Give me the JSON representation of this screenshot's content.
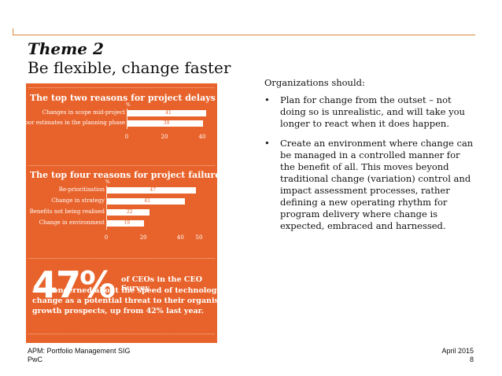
{
  "slide": {
    "title": "Theme 2",
    "subtitle": "Be flexible, change faster"
  },
  "infographic": {
    "chart1_heading": "The top two reasons for project delays were:",
    "chart2_heading": "The top four reasons for project failure include:",
    "stat_value": "47%",
    "stat_text_inline": "of CEOs in the CEO Survey",
    "stat_lines": [
      "are concerned about the speed of technological",
      "change as a potential threat to their organisation's",
      "growth prospects, up from 42% last year."
    ]
  },
  "chart_data": [
    {
      "type": "bar",
      "orientation": "horizontal",
      "title": "The top two reasons for project delays were:",
      "unit_label": "%",
      "categories": [
        "Changes in scope mid-project",
        "Poor estimates in the planning phase"
      ],
      "values": [
        41,
        39
      ],
      "ticks": [
        "0",
        "20",
        "40"
      ],
      "xlim": [
        0,
        40
      ]
    },
    {
      "type": "bar",
      "orientation": "horizontal",
      "title": "The top four reasons for project failure include:",
      "unit_label": "%",
      "categories": [
        "Re-prioritisation",
        "Change in strategy",
        "Benefits not being realised",
        "Change in environment"
      ],
      "values": [
        47,
        41,
        22,
        19
      ],
      "ticks": [
        "0",
        "20",
        "40",
        "50"
      ],
      "xlim": [
        0,
        50
      ]
    }
  ],
  "content": {
    "intro": "Organizations should:",
    "bullets": [
      "Plan for change from the outset – not doing so is unrealistic, and will take you longer to react when it does happen.",
      "Create an environment where change can be managed in a controlled manner for the benefit of all. This moves beyond traditional change (variation) control and impact assessment processes, rather defining a new operating rhythm for program delivery where change is expected, embraced and harnessed."
    ],
    "bullet_symbol": "•"
  },
  "footer": {
    "left_line1": "APM: Portfolio Management SIG",
    "left_line2": "PwC",
    "right_line1": "April 2015",
    "page_number": "8"
  },
  "colors": {
    "panel": "#e8632b",
    "rule": "#d88a3a"
  }
}
